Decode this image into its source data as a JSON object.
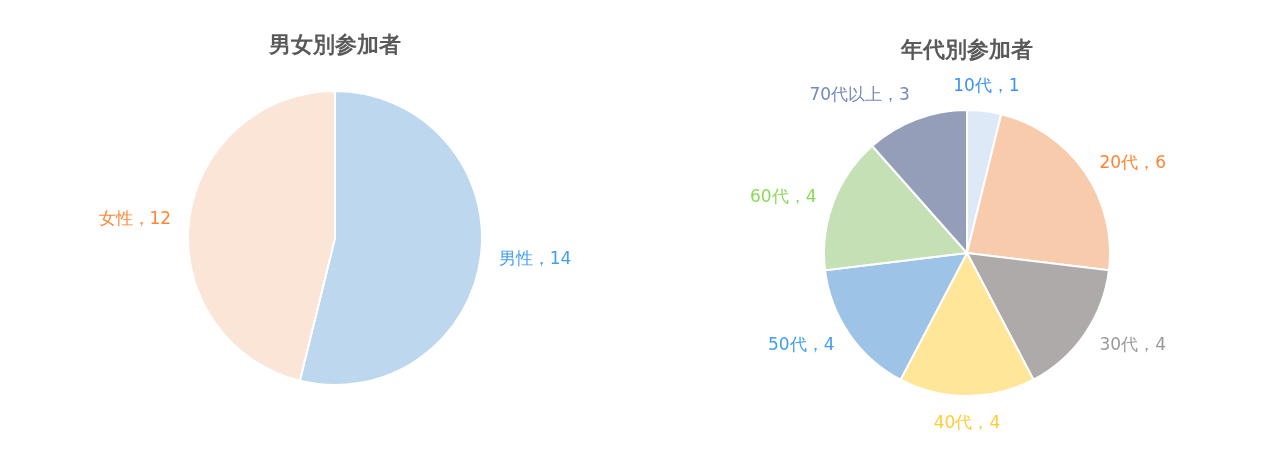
{
  "chart_data": [
    {
      "type": "pie",
      "title": "男女別参加者",
      "categories": [
        "男性",
        "女性"
      ],
      "values": [
        14,
        12
      ],
      "colors": [
        "#bdd7ee",
        "#fbe5d6"
      ],
      "value_labels": [
        "，14",
        "，12"
      ],
      "legend": false
    },
    {
      "type": "pie",
      "title": "年代別参加者",
      "categories": [
        "10代",
        "20代",
        "30代",
        "40代",
        "50代",
        "60代",
        "70代以上"
      ],
      "values": [
        1,
        6,
        4,
        4,
        4,
        4,
        3
      ],
      "colors": [
        "#dde9f7",
        "#f8cbad",
        "#aeaaaa",
        "#ffe699",
        "#9dc3e6",
        "#c5e0b4",
        "#959eb8"
      ],
      "value_labels": [
        "，1",
        "，6",
        "，4",
        "，4",
        "，4",
        "，4",
        "，3"
      ],
      "legend": false
    }
  ]
}
